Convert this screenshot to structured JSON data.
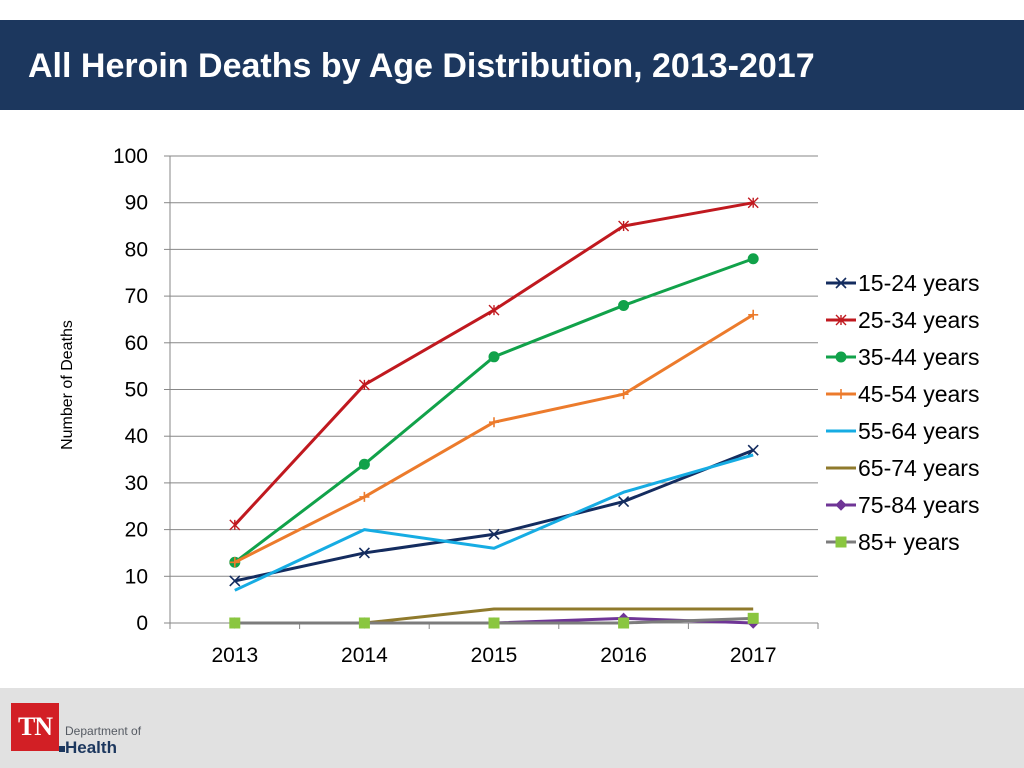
{
  "header": {
    "title": "All Heroin Deaths by Age Distribution, 2013-2017"
  },
  "footer": {
    "logo_abbrev": "TN",
    "logo_dept": "Department of",
    "logo_health": "Health"
  },
  "colors": {
    "title_bar": "#1c375e",
    "footer_bg": "#e1e1e1",
    "logo_red": "#d21f25",
    "gridline": "#878787",
    "axis": "#878787"
  },
  "chart_data": {
    "type": "line",
    "title": "",
    "xlabel": "",
    "ylabel": "Number of Deaths",
    "ylim": [
      0,
      100
    ],
    "yticks": [
      0,
      10,
      20,
      30,
      40,
      50,
      60,
      70,
      80,
      90,
      100
    ],
    "grid": true,
    "legend_position": "right",
    "categories": [
      "2013",
      "2014",
      "2015",
      "2016",
      "2017"
    ],
    "series": [
      {
        "name": "15-24 years",
        "values": [
          9,
          15,
          19,
          26,
          37
        ],
        "color": "#142c5f",
        "marker": "x"
      },
      {
        "name": "25-34 years",
        "values": [
          21,
          51,
          67,
          85,
          90
        ],
        "color": "#c0191f",
        "marker": "star"
      },
      {
        "name": "35-44 years",
        "values": [
          13,
          34,
          57,
          68,
          78
        ],
        "color": "#11a24a",
        "marker": "circle"
      },
      {
        "name": "45-54 years",
        "values": [
          13,
          27,
          43,
          49,
          66
        ],
        "color": "#ec7b2c",
        "marker": "plus"
      },
      {
        "name": "55-64 years",
        "values": [
          7,
          20,
          16,
          28,
          36
        ],
        "color": "#16ace3",
        "marker": "none"
      },
      {
        "name": "65-74 years",
        "values": [
          0,
          0,
          3,
          3,
          3
        ],
        "color": "#8f7a2c",
        "marker": "none"
      },
      {
        "name": "75-84 years",
        "values": [
          0,
          0,
          0,
          1,
          0
        ],
        "color": "#6f3596",
        "marker": "diamond"
      },
      {
        "name": "85+ years",
        "values": [
          0,
          0,
          0,
          0,
          1
        ],
        "color": "#7c7c7c",
        "marker": "square",
        "marker_color": "#8ac640"
      }
    ]
  }
}
